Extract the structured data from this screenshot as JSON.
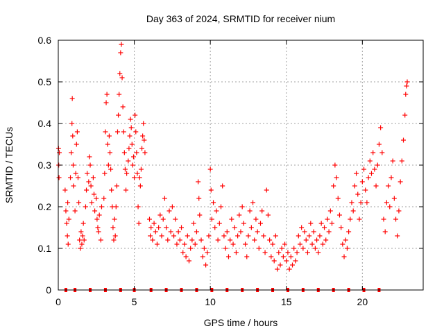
{
  "chart_data": {
    "type": "scatter",
    "title": "Day 363 of 2024, SRMTID for receiver nium",
    "xlabel": "GPS time / hours",
    "ylabel": "SRMTID / TECUs",
    "xlim": [
      0,
      24
    ],
    "ylim": [
      0,
      0.6
    ],
    "xticks": [
      0,
      5,
      10,
      15,
      20
    ],
    "yticks": [
      0,
      0.1,
      0.2,
      0.3,
      0.4,
      0.5,
      0.6
    ],
    "grid": true,
    "marker": "+",
    "color": "#ff0000",
    "series": [
      {
        "name": "SRMTID",
        "points": [
          [
            0.02,
            0.34
          ],
          [
            0.03,
            0.3
          ],
          [
            0.05,
            0.27
          ],
          [
            0.07,
            0.33
          ],
          [
            0.45,
            0.24
          ],
          [
            0.5,
            0.19
          ],
          [
            0.55,
            0.16
          ],
          [
            0.6,
            0.13
          ],
          [
            0.62,
            0.21
          ],
          [
            0.65,
            0.11
          ],
          [
            0.7,
            0.17
          ],
          [
            0.8,
            0.27
          ],
          [
            0.85,
            0.33
          ],
          [
            0.9,
            0.4
          ],
          [
            0.92,
            0.46
          ],
          [
            0.95,
            0.37
          ],
          [
            0.98,
            0.3
          ],
          [
            1.0,
            0.25
          ],
          [
            1.1,
            0.19
          ],
          [
            1.15,
            0.28
          ],
          [
            1.2,
            0.35
          ],
          [
            1.25,
            0.38
          ],
          [
            1.3,
            0.27
          ],
          [
            1.35,
            0.21
          ],
          [
            1.4,
            0.12
          ],
          [
            1.45,
            0.1
          ],
          [
            1.5,
            0.14
          ],
          [
            1.55,
            0.11
          ],
          [
            1.6,
            0.13
          ],
          [
            1.65,
            0.16
          ],
          [
            1.7,
            0.12
          ],
          [
            1.8,
            0.2
          ],
          [
            1.85,
            0.24
          ],
          [
            1.9,
            0.28
          ],
          [
            2.0,
            0.26
          ],
          [
            2.05,
            0.32
          ],
          [
            2.1,
            0.3
          ],
          [
            2.15,
            0.25
          ],
          [
            2.2,
            0.21
          ],
          [
            2.3,
            0.27
          ],
          [
            2.35,
            0.23
          ],
          [
            2.4,
            0.19
          ],
          [
            2.5,
            0.22
          ],
          [
            2.55,
            0.17
          ],
          [
            2.6,
            0.15
          ],
          [
            2.65,
            0.14
          ],
          [
            2.7,
            0.18
          ],
          [
            2.8,
            0.12
          ],
          [
            2.85,
            0.2
          ],
          [
            3.0,
            0.22
          ],
          [
            3.05,
            0.28
          ],
          [
            3.1,
            0.38
          ],
          [
            3.15,
            0.45
          ],
          [
            3.2,
            0.47
          ],
          [
            3.25,
            0.35
          ],
          [
            3.3,
            0.3
          ],
          [
            3.35,
            0.37
          ],
          [
            3.4,
            0.33
          ],
          [
            3.45,
            0.29
          ],
          [
            3.5,
            0.24
          ],
          [
            3.55,
            0.2
          ],
          [
            3.6,
            0.15
          ],
          [
            3.65,
            0.12
          ],
          [
            3.7,
            0.17
          ],
          [
            3.75,
            0.13
          ],
          [
            3.8,
            0.2
          ],
          [
            3.85,
            0.25
          ],
          [
            3.9,
            0.38
          ],
          [
            3.95,
            0.42
          ],
          [
            4.0,
            0.47
          ],
          [
            4.05,
            0.52
          ],
          [
            4.1,
            0.57
          ],
          [
            4.15,
            0.59
          ],
          [
            4.2,
            0.51
          ],
          [
            4.25,
            0.44
          ],
          [
            4.3,
            0.38
          ],
          [
            4.35,
            0.33
          ],
          [
            4.4,
            0.29
          ],
          [
            4.45,
            0.24
          ],
          [
            4.5,
            0.28
          ],
          [
            4.6,
            0.31
          ],
          [
            4.65,
            0.34
          ],
          [
            4.7,
            0.37
          ],
          [
            4.75,
            0.41
          ],
          [
            4.8,
            0.39
          ],
          [
            4.85,
            0.35
          ],
          [
            4.9,
            0.3
          ],
          [
            4.95,
            0.32
          ],
          [
            5.0,
            0.27
          ],
          [
            5.05,
            0.42
          ],
          [
            5.1,
            0.38
          ],
          [
            5.15,
            0.33
          ],
          [
            5.2,
            0.28
          ],
          [
            5.25,
            0.2
          ],
          [
            5.3,
            0.16
          ],
          [
            5.35,
            0.27
          ],
          [
            5.4,
            0.25
          ],
          [
            5.45,
            0.29
          ],
          [
            5.5,
            0.34
          ],
          [
            5.55,
            0.37
          ],
          [
            5.6,
            0.4
          ],
          [
            5.65,
            0.36
          ],
          [
            5.7,
            0.33
          ],
          [
            6.0,
            0.17
          ],
          [
            6.05,
            0.13
          ],
          [
            6.1,
            0.15
          ],
          [
            6.2,
            0.12
          ],
          [
            6.3,
            0.16
          ],
          [
            6.4,
            0.14
          ],
          [
            6.5,
            0.11
          ],
          [
            6.6,
            0.15
          ],
          [
            6.7,
            0.18
          ],
          [
            6.8,
            0.13
          ],
          [
            6.9,
            0.17
          ],
          [
            7.0,
            0.22
          ],
          [
            7.1,
            0.15
          ],
          [
            7.2,
            0.12
          ],
          [
            7.3,
            0.19
          ],
          [
            7.4,
            0.14
          ],
          [
            7.5,
            0.2
          ],
          [
            7.6,
            0.13
          ],
          [
            7.7,
            0.17
          ],
          [
            7.8,
            0.11
          ],
          [
            7.9,
            0.14
          ],
          [
            8.0,
            0.12
          ],
          [
            8.1,
            0.15
          ],
          [
            8.2,
            0.09
          ],
          [
            8.3,
            0.11
          ],
          [
            8.4,
            0.08
          ],
          [
            8.5,
            0.13
          ],
          [
            8.6,
            0.07
          ],
          [
            8.7,
            0.1
          ],
          [
            8.8,
            0.12
          ],
          [
            8.9,
            0.16
          ],
          [
            9.0,
            0.11
          ],
          [
            9.1,
            0.14
          ],
          [
            9.2,
            0.26
          ],
          [
            9.25,
            0.22
          ],
          [
            9.3,
            0.18
          ],
          [
            9.4,
            0.12
          ],
          [
            9.5,
            0.08
          ],
          [
            9.6,
            0.1
          ],
          [
            9.7,
            0.06
          ],
          [
            9.8,
            0.09
          ],
          [
            9.9,
            0.13
          ],
          [
            10.0,
            0.29
          ],
          [
            10.05,
            0.24
          ],
          [
            10.1,
            0.17
          ],
          [
            10.2,
            0.21
          ],
          [
            10.3,
            0.15
          ],
          [
            10.4,
            0.19
          ],
          [
            10.5,
            0.12
          ],
          [
            10.6,
            0.16
          ],
          [
            10.7,
            0.2
          ],
          [
            10.8,
            0.25
          ],
          [
            10.9,
            0.13
          ],
          [
            11.0,
            0.1
          ],
          [
            11.1,
            0.14
          ],
          [
            11.2,
            0.08
          ],
          [
            11.3,
            0.12
          ],
          [
            11.4,
            0.17
          ],
          [
            11.5,
            0.11
          ],
          [
            11.6,
            0.15
          ],
          [
            11.7,
            0.09
          ],
          [
            11.8,
            0.13
          ],
          [
            11.9,
            0.18
          ],
          [
            12.0,
            0.14
          ],
          [
            12.1,
            0.2
          ],
          [
            12.2,
            0.16
          ],
          [
            12.3,
            0.11
          ],
          [
            12.4,
            0.08
          ],
          [
            12.5,
            0.13
          ],
          [
            12.6,
            0.19
          ],
          [
            12.7,
            0.15
          ],
          [
            12.8,
            0.21
          ],
          [
            12.9,
            0.12
          ],
          [
            13.0,
            0.17
          ],
          [
            13.1,
            0.14
          ],
          [
            13.2,
            0.1
          ],
          [
            13.3,
            0.16
          ],
          [
            13.4,
            0.19
          ],
          [
            13.5,
            0.13
          ],
          [
            13.6,
            0.09
          ],
          [
            13.7,
            0.24
          ],
          [
            13.8,
            0.18
          ],
          [
            13.9,
            0.12
          ],
          [
            14.0,
            0.08
          ],
          [
            14.1,
            0.11
          ],
          [
            14.2,
            0.07
          ],
          [
            14.3,
            0.13
          ],
          [
            14.4,
            0.05
          ],
          [
            14.5,
            0.09
          ],
          [
            14.6,
            0.06
          ],
          [
            14.7,
            0.1
          ],
          [
            14.8,
            0.08
          ],
          [
            14.9,
            0.11
          ],
          [
            15.0,
            0.07
          ],
          [
            15.1,
            0.09
          ],
          [
            15.2,
            0.05
          ],
          [
            15.3,
            0.08
          ],
          [
            15.4,
            0.06
          ],
          [
            15.5,
            0.1
          ],
          [
            15.6,
            0.07
          ],
          [
            15.7,
            0.09
          ],
          [
            15.8,
            0.13
          ],
          [
            15.9,
            0.11
          ],
          [
            16.0,
            0.15
          ],
          [
            16.1,
            0.1
          ],
          [
            16.2,
            0.14
          ],
          [
            16.3,
            0.12
          ],
          [
            16.4,
            0.09
          ],
          [
            16.5,
            0.13
          ],
          [
            16.6,
            0.16
          ],
          [
            16.7,
            0.11
          ],
          [
            16.8,
            0.14
          ],
          [
            16.9,
            0.1
          ],
          [
            17.0,
            0.12
          ],
          [
            17.1,
            0.09
          ],
          [
            17.2,
            0.13
          ],
          [
            17.3,
            0.16
          ],
          [
            17.4,
            0.11
          ],
          [
            17.5,
            0.15
          ],
          [
            17.6,
            0.12
          ],
          [
            17.7,
            0.17
          ],
          [
            17.8,
            0.14
          ],
          [
            17.9,
            0.19
          ],
          [
            18.0,
            0.16
          ],
          [
            18.1,
            0.25
          ],
          [
            18.2,
            0.3
          ],
          [
            18.3,
            0.27
          ],
          [
            18.4,
            0.22
          ],
          [
            18.5,
            0.18
          ],
          [
            18.6,
            0.15
          ],
          [
            18.7,
            0.11
          ],
          [
            18.8,
            0.08
          ],
          [
            18.9,
            0.12
          ],
          [
            19.0,
            0.1
          ],
          [
            19.1,
            0.14
          ],
          [
            19.2,
            0.17
          ],
          [
            19.3,
            0.21
          ],
          [
            19.4,
            0.19
          ],
          [
            19.5,
            0.25
          ],
          [
            19.6,
            0.28
          ],
          [
            19.7,
            0.23
          ],
          [
            19.8,
            0.17
          ],
          [
            19.9,
            0.21
          ],
          [
            20.0,
            0.26
          ],
          [
            20.1,
            0.29
          ],
          [
            20.2,
            0.24
          ],
          [
            20.3,
            0.21
          ],
          [
            20.4,
            0.27
          ],
          [
            20.5,
            0.31
          ],
          [
            20.6,
            0.28
          ],
          [
            20.7,
            0.33
          ],
          [
            20.8,
            0.29
          ],
          [
            20.9,
            0.25
          ],
          [
            21.0,
            0.3
          ],
          [
            21.1,
            0.35
          ],
          [
            21.2,
            0.39
          ],
          [
            21.3,
            0.33
          ],
          [
            21.4,
            0.17
          ],
          [
            21.5,
            0.14
          ],
          [
            21.6,
            0.21
          ],
          [
            21.7,
            0.25
          ],
          [
            21.8,
            0.2
          ],
          [
            21.9,
            0.27
          ],
          [
            22.0,
            0.31
          ],
          [
            22.1,
            0.22
          ],
          [
            22.2,
            0.17
          ],
          [
            22.3,
            0.13
          ],
          [
            22.4,
            0.19
          ],
          [
            22.5,
            0.26
          ],
          [
            22.6,
            0.31
          ],
          [
            22.7,
            0.36
          ],
          [
            22.8,
            0.42
          ],
          [
            22.85,
            0.47
          ],
          [
            22.9,
            0.49
          ],
          [
            22.95,
            0.5
          ]
        ]
      }
    ],
    "zero_markers_x": [
      0.5,
      1.1,
      2.1,
      3.1,
      4.1,
      5.0,
      6.1,
      7.1,
      8.1,
      9.1,
      10.1,
      11.1,
      12.1,
      13.1,
      14.1,
      15.1,
      16.1,
      17.1,
      18.1,
      19.1,
      20.1,
      21.1
    ]
  }
}
